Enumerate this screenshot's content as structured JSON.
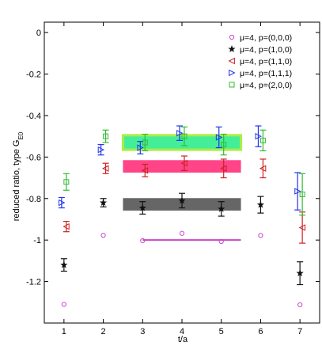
{
  "chart_data": {
    "type": "scatter",
    "title": "",
    "xlabel": "t/a",
    "ylabel_main": "reduced ratio, type G",
    "ylabel_sub": "E0",
    "xlim": [
      0.5,
      7.5
    ],
    "ylim": [
      -1.4,
      0.05
    ],
    "xticks": [
      1,
      2,
      3,
      4,
      5,
      6,
      7
    ],
    "xtick_labels": [
      "1",
      "2",
      "3",
      "4",
      "5",
      "6",
      "7"
    ],
    "yticks": [
      0,
      -0.2,
      -0.4,
      -0.6,
      -0.8,
      -1,
      -1.2
    ],
    "ytick_labels": [
      "0",
      "-0.2",
      "-0.4",
      "-0.6",
      "-0.8",
      "-1",
      "-1.2"
    ],
    "legend_position": "top-right",
    "series": [
      {
        "name": "μ=4, p=(0,0,0)",
        "marker": "circle",
        "color": "#cc44cc",
        "points": [
          {
            "x": 1,
            "y": -1.31,
            "err": 0.004
          },
          {
            "x": 2,
            "y": -0.977,
            "err": 0.004
          },
          {
            "x": 3,
            "y": -1.003,
            "err": 0.004
          },
          {
            "x": 4,
            "y": -0.968,
            "err": 0.004
          },
          {
            "x": 5,
            "y": -1.007,
            "err": 0.004
          },
          {
            "x": 6,
            "y": -0.978,
            "err": 0.004
          },
          {
            "x": 7,
            "y": -1.312,
            "err": 0.004
          }
        ],
        "fit": {
          "x0": 3,
          "x1": 5.5,
          "y": -1.0,
          "err": 0.004
        }
      },
      {
        "name": "μ=4, p=(1,0,0)",
        "marker": "star",
        "color": "#111111",
        "points": [
          {
            "x": 1,
            "y": -1.12,
            "err": 0.03
          },
          {
            "x": 2,
            "y": -0.82,
            "err": 0.02
          },
          {
            "x": 3,
            "y": -0.845,
            "err": 0.03
          },
          {
            "x": 4,
            "y": -0.81,
            "err": 0.035
          },
          {
            "x": 5,
            "y": -0.85,
            "err": 0.035
          },
          {
            "x": 6,
            "y": -0.83,
            "err": 0.04
          },
          {
            "x": 7,
            "y": -1.16,
            "err": 0.055
          }
        ],
        "fit": {
          "x0": 2.5,
          "x1": 5.5,
          "y": -0.828,
          "err": 0.03
        }
      },
      {
        "name": "μ=4, p=(1,1,0)",
        "marker": "triangle-left",
        "color": "#cc2222",
        "points": [
          {
            "x": 1,
            "y": -0.935,
            "err": 0.025
          },
          {
            "x": 2,
            "y": -0.655,
            "err": 0.025
          },
          {
            "x": 3,
            "y": -0.665,
            "err": 0.03
          },
          {
            "x": 4,
            "y": -0.63,
            "err": 0.035
          },
          {
            "x": 5,
            "y": -0.655,
            "err": 0.045
          },
          {
            "x": 6,
            "y": -0.655,
            "err": 0.045
          },
          {
            "x": 7,
            "y": -0.94,
            "err": 0.075
          }
        ],
        "fit": {
          "x0": 2.5,
          "x1": 5.5,
          "y": -0.645,
          "err": 0.03
        }
      },
      {
        "name": "μ=4, p=(1,1,1)",
        "marker": "triangle-right",
        "color": "#2233ee",
        "points": [
          {
            "x": 1,
            "y": -0.82,
            "err": 0.025
          },
          {
            "x": 2,
            "y": -0.565,
            "err": 0.025
          },
          {
            "x": 3,
            "y": -0.555,
            "err": 0.03
          },
          {
            "x": 4,
            "y": -0.485,
            "err": 0.035
          },
          {
            "x": 5,
            "y": -0.505,
            "err": 0.05
          },
          {
            "x": 6,
            "y": -0.5,
            "err": 0.05
          },
          {
            "x": 7,
            "y": -0.765,
            "err": 0.09
          }
        ],
        "fit": {
          "x0": 2.5,
          "x1": 5.5,
          "y": -0.535,
          "err": 0.03
        }
      },
      {
        "name": "μ=4, p=(2,0,0)",
        "marker": "square",
        "color": "#33bb33",
        "points": [
          {
            "x": 1,
            "y": -0.72,
            "err": 0.04
          },
          {
            "x": 2,
            "y": -0.5,
            "err": 0.03
          },
          {
            "x": 3,
            "y": -0.53,
            "err": 0.04
          },
          {
            "x": 4,
            "y": -0.5,
            "err": 0.045
          },
          {
            "x": 5,
            "y": -0.54,
            "err": 0.05
          },
          {
            "x": 6,
            "y": -0.52,
            "err": 0.05
          },
          {
            "x": 7,
            "y": -0.78,
            "err": 0.1
          }
        ],
        "fit": {
          "x0": 2.5,
          "x1": 5.5,
          "y": -0.53,
          "err": 0.035
        }
      }
    ],
    "fit_band_colors": [
      "#cc44cc",
      "#666666",
      "#ff4488",
      "#4466ee",
      "#44ee99"
    ],
    "fit_band_edge_color": "#aaee44"
  }
}
